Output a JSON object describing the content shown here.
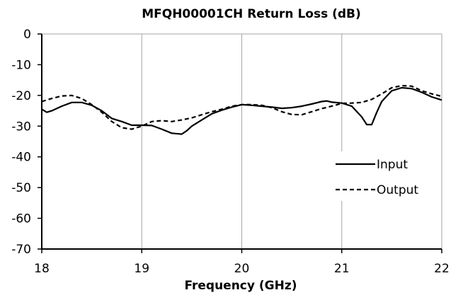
{
  "chart_data": {
    "type": "line",
    "title": "MFQH00001CH Return Loss (dB)",
    "xlabel": "Frequency (GHz)",
    "ylabel": "",
    "xlim": [
      18,
      22
    ],
    "ylim": [
      -70,
      0
    ],
    "xticks": [
      18,
      19,
      20,
      21,
      22
    ],
    "yticks": [
      0,
      -10,
      -20,
      -30,
      -40,
      -50,
      -60,
      -70
    ],
    "grid": "vertical",
    "legend": "right",
    "series": [
      {
        "name": "Input",
        "style": "solid",
        "color": "#000000",
        "x": [
          18.0,
          18.05,
          18.1,
          18.2,
          18.3,
          18.4,
          18.5,
          18.6,
          18.7,
          18.8,
          18.9,
          19.0,
          19.1,
          19.2,
          19.3,
          19.4,
          19.45,
          19.5,
          19.6,
          19.7,
          19.8,
          19.9,
          20.0,
          20.1,
          20.2,
          20.3,
          20.4,
          20.5,
          20.6,
          20.7,
          20.8,
          20.85,
          20.9,
          21.0,
          21.1,
          21.2,
          21.25,
          21.3,
          21.35,
          21.4,
          21.5,
          21.6,
          21.7,
          21.8,
          21.9,
          22.0
        ],
        "y": [
          -24.5,
          -25.5,
          -25.0,
          -23.5,
          -22.3,
          -22.3,
          -23.2,
          -25.0,
          -27.5,
          -28.5,
          -29.7,
          -29.7,
          -29.8,
          -31.0,
          -32.3,
          -32.6,
          -31.5,
          -30.0,
          -28.0,
          -26.0,
          -24.8,
          -23.8,
          -23.0,
          -23.2,
          -23.5,
          -23.8,
          -24.2,
          -24.0,
          -23.5,
          -22.8,
          -22.0,
          -21.8,
          -22.2,
          -22.5,
          -23.5,
          -27.0,
          -29.5,
          -29.5,
          -25.5,
          -22.0,
          -18.5,
          -17.5,
          -17.8,
          -19.0,
          -20.5,
          -21.5
        ]
      },
      {
        "name": "Output",
        "style": "dashed",
        "color": "#000000",
        "x": [
          18.0,
          18.1,
          18.2,
          18.3,
          18.4,
          18.5,
          18.6,
          18.7,
          18.8,
          18.9,
          19.0,
          19.1,
          19.2,
          19.3,
          19.4,
          19.5,
          19.6,
          19.7,
          19.8,
          19.9,
          20.0,
          20.1,
          20.2,
          20.3,
          20.4,
          20.5,
          20.6,
          20.7,
          20.8,
          20.9,
          21.0,
          21.1,
          21.2,
          21.3,
          21.4,
          21.5,
          21.6,
          21.7,
          21.8,
          21.9,
          22.0
        ],
        "y": [
          -22.0,
          -21.0,
          -20.2,
          -20.0,
          -21.0,
          -23.0,
          -25.5,
          -28.5,
          -30.5,
          -31.0,
          -30.0,
          -28.5,
          -28.2,
          -28.5,
          -28.0,
          -27.3,
          -26.3,
          -25.3,
          -24.5,
          -23.5,
          -23.0,
          -23.0,
          -23.2,
          -24.0,
          -25.3,
          -26.2,
          -26.3,
          -25.3,
          -24.3,
          -23.5,
          -22.6,
          -22.5,
          -22.3,
          -21.3,
          -19.5,
          -17.5,
          -16.8,
          -17.0,
          -18.5,
          -19.5,
          -20.3
        ]
      }
    ]
  }
}
